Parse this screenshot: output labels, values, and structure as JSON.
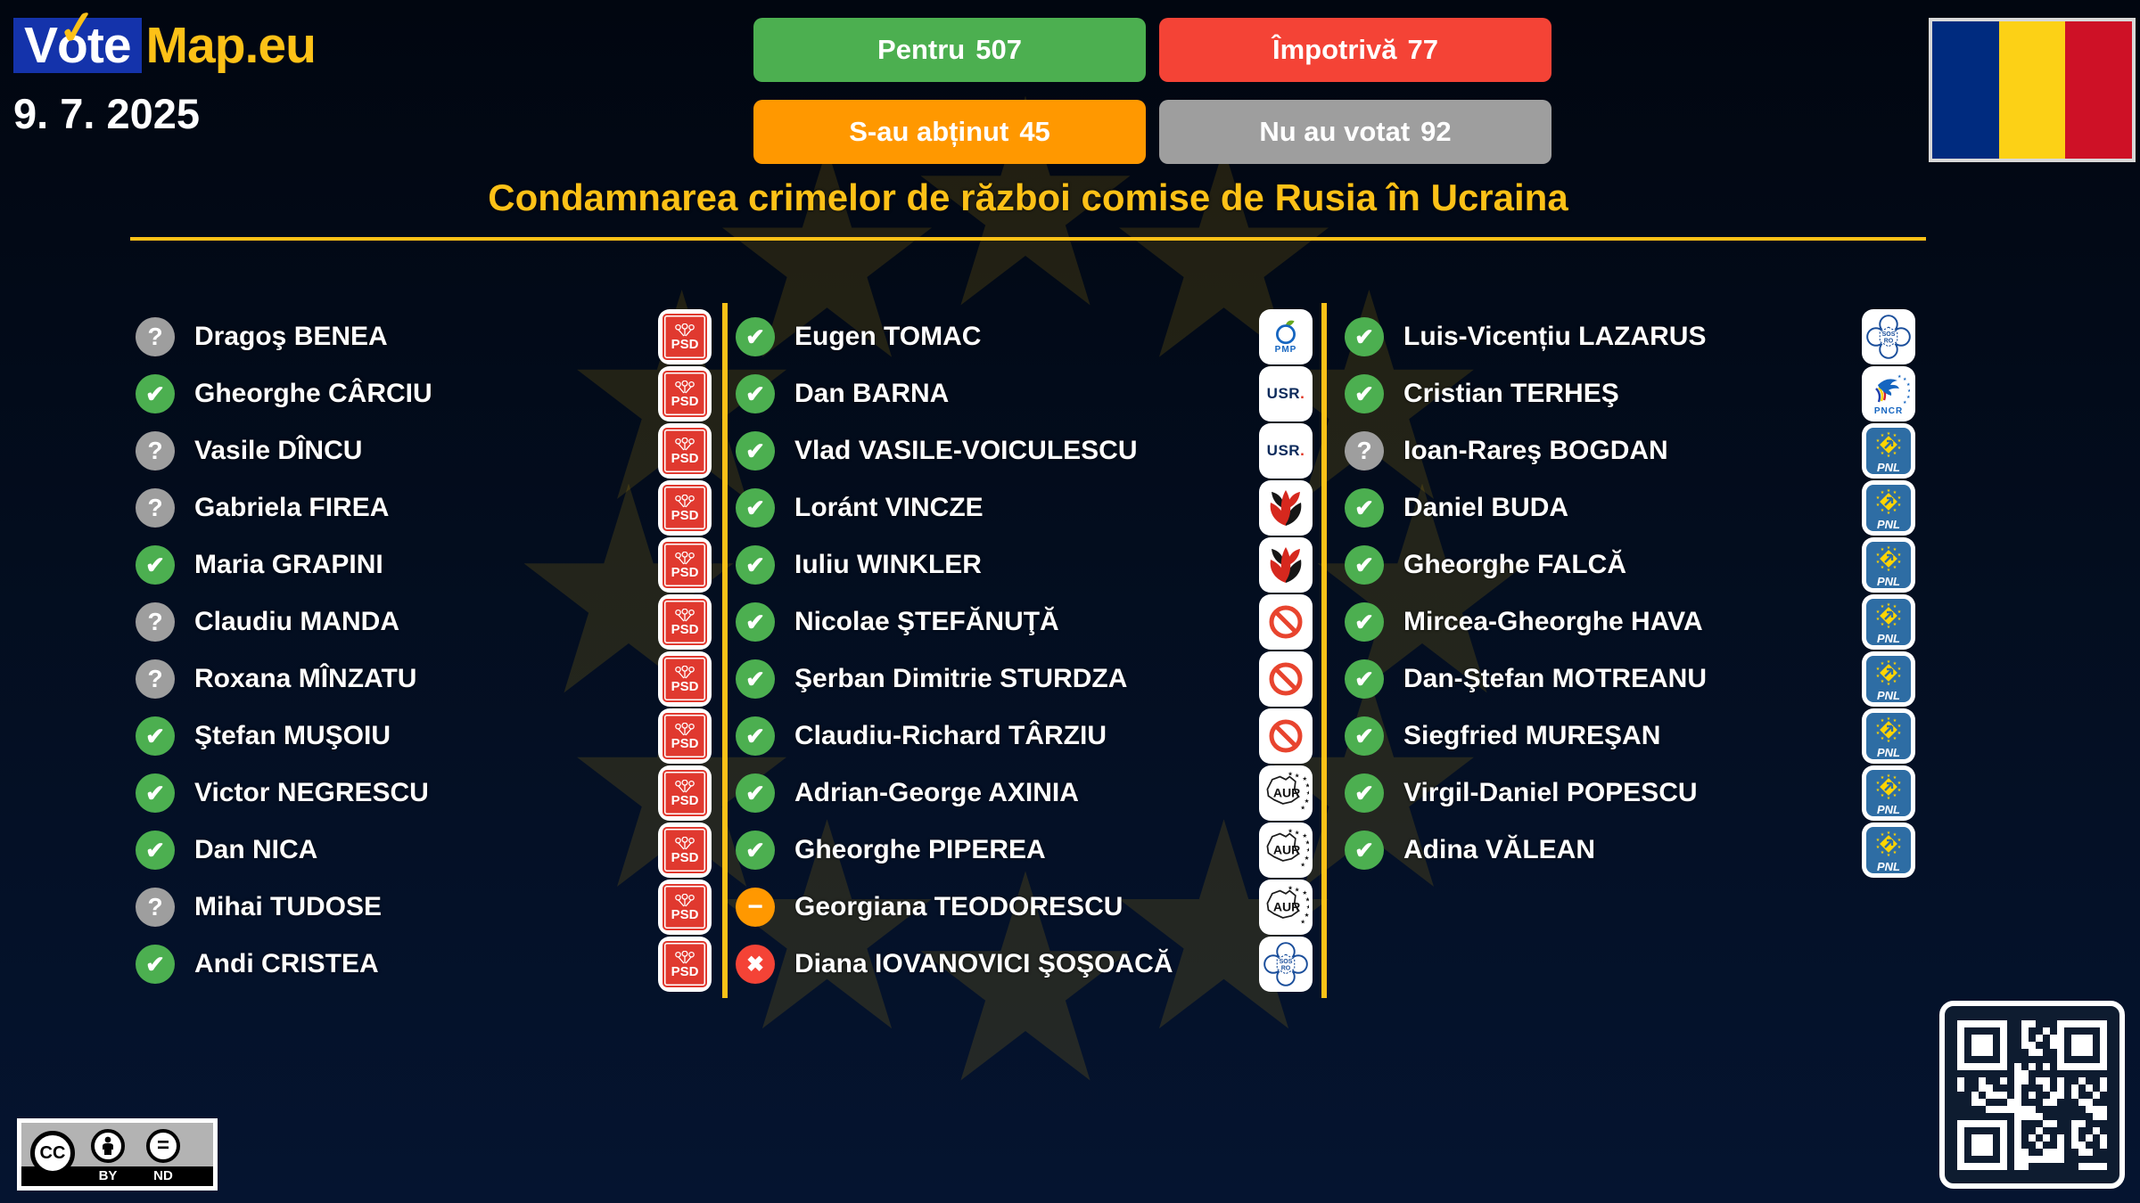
{
  "brand": {
    "vote_v": "V",
    "vote_o": "o",
    "vote_te": "te",
    "check_glyph": "✓",
    "map": "Map.eu",
    "date": "9. 7. 2025"
  },
  "summary": {
    "for": {
      "label": "Pentru",
      "count": 507
    },
    "against": {
      "label": "Împotrivă",
      "count": 77
    },
    "abstain": {
      "label": "S-au abținut",
      "count": 45
    },
    "novote": {
      "label": "Nu au votat",
      "count": 92
    }
  },
  "title": "Condamnarea crimelor de război comise de Rusia în Ucraina",
  "vote_glyphs": {
    "yes": "✔",
    "no": "✖",
    "abstain": "−",
    "unknown": "?"
  },
  "party_labels": {
    "PSD": "PSD",
    "USR": "USR",
    "USR_dot": ".",
    "PMP": "PMP",
    "AUR": "AUR",
    "PNL": "PNL",
    "PNCR": "PNCR",
    "SOS_line1": "SOS",
    "SOS_line2": "RO"
  },
  "colors": {
    "gold": "#fdc117",
    "green": "#4caf50",
    "red": "#f44336",
    "orange": "#ff9800",
    "gray": "#9e9e9e",
    "flag_blue": "#002b7f",
    "flag_yellow": "#fcd116",
    "flag_red": "#ce1126"
  },
  "columns": [
    {
      "members": [
        {
          "name": "Dragoş BENEA",
          "vote": "unknown",
          "party": "PSD"
        },
        {
          "name": "Gheorghe CÂRCIU",
          "vote": "yes",
          "party": "PSD"
        },
        {
          "name": "Vasile DÎNCU",
          "vote": "unknown",
          "party": "PSD"
        },
        {
          "name": "Gabriela FIREA",
          "vote": "unknown",
          "party": "PSD"
        },
        {
          "name": "Maria GRAPINI",
          "vote": "yes",
          "party": "PSD"
        },
        {
          "name": "Claudiu MANDA",
          "vote": "unknown",
          "party": "PSD"
        },
        {
          "name": "Roxana MÎNZATU",
          "vote": "unknown",
          "party": "PSD"
        },
        {
          "name": "Ştefan MUŞOIU",
          "vote": "yes",
          "party": "PSD"
        },
        {
          "name": "Victor NEGRESCU",
          "vote": "yes",
          "party": "PSD"
        },
        {
          "name": "Dan NICA",
          "vote": "yes",
          "party": "PSD"
        },
        {
          "name": "Mihai TUDOSE",
          "vote": "unknown",
          "party": "PSD"
        },
        {
          "name": "Andi CRISTEA",
          "vote": "yes",
          "party": "PSD"
        }
      ]
    },
    {
      "members": [
        {
          "name": "Eugen TOMAC",
          "vote": "yes",
          "party": "PMP"
        },
        {
          "name": "Dan BARNA",
          "vote": "yes",
          "party": "USR"
        },
        {
          "name": "Vlad VASILE-VOICULESCU",
          "vote": "yes",
          "party": "USR"
        },
        {
          "name": "Loránt VINCZE",
          "vote": "yes",
          "party": "UDMR"
        },
        {
          "name": "Iuliu WINKLER",
          "vote": "yes",
          "party": "UDMR"
        },
        {
          "name": "Nicolae ŞTEFĂNUŢĂ",
          "vote": "yes",
          "party": "INDEP"
        },
        {
          "name": "Şerban Dimitrie STURDZA",
          "vote": "yes",
          "party": "INDEP"
        },
        {
          "name": "Claudiu-Richard TÂRZIU",
          "vote": "yes",
          "party": "INDEP"
        },
        {
          "name": "Adrian-George AXINIA",
          "vote": "yes",
          "party": "AUR"
        },
        {
          "name": "Gheorghe PIPEREA",
          "vote": "yes",
          "party": "AUR"
        },
        {
          "name": "Georgiana TEODORESCU",
          "vote": "abstain",
          "party": "AUR"
        },
        {
          "name": "Diana IOVANOVICI ŞOŞOACĂ",
          "vote": "no",
          "party": "SOS"
        }
      ]
    },
    {
      "members": [
        {
          "name": "Luis-Vicențiu LAZARUS",
          "vote": "yes",
          "party": "SOS"
        },
        {
          "name": "Cristian TERHEŞ",
          "vote": "yes",
          "party": "PNCR"
        },
        {
          "name": "Ioan-Rareş BOGDAN",
          "vote": "unknown",
          "party": "PNL"
        },
        {
          "name": "Daniel BUDA",
          "vote": "yes",
          "party": "PNL"
        },
        {
          "name": "Gheorghe FALCĂ",
          "vote": "yes",
          "party": "PNL"
        },
        {
          "name": "Mircea-Gheorghe HAVA",
          "vote": "yes",
          "party": "PNL"
        },
        {
          "name": "Dan-Ştefan MOTREANU",
          "vote": "yes",
          "party": "PNL"
        },
        {
          "name": "Siegfried MUREŞAN",
          "vote": "yes",
          "party": "PNL"
        },
        {
          "name": "Virgil-Daniel POPESCU",
          "vote": "yes",
          "party": "PNL"
        },
        {
          "name": "Adina VĂLEAN",
          "vote": "yes",
          "party": "PNL"
        }
      ]
    }
  ],
  "license": {
    "cc": "CC",
    "by": "BY",
    "nd": "ND",
    "equals": "="
  }
}
